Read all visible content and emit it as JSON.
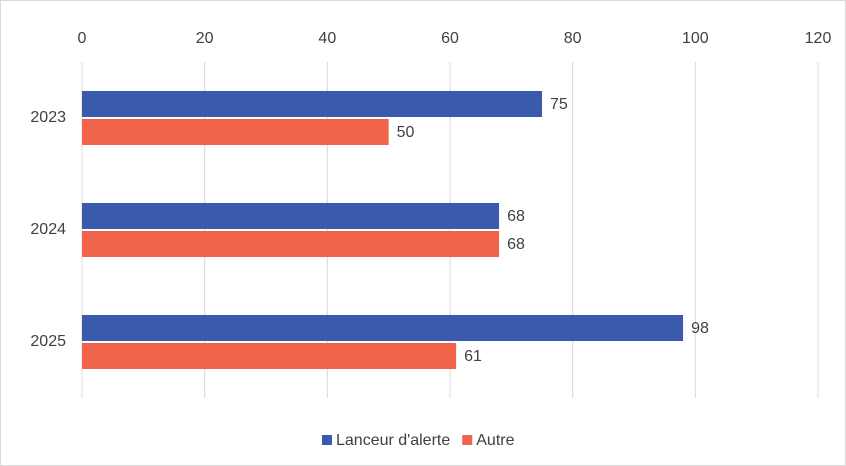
{
  "chart_data": {
    "type": "hbar",
    "categories": [
      "2023",
      "2024",
      "2025"
    ],
    "series": [
      {
        "name": "Lanceur d'alerte",
        "color": "#3a5bad",
        "values": [
          75,
          68,
          98
        ]
      },
      {
        "name": "Autre",
        "color": "#f0654a",
        "values": [
          50,
          68,
          61
        ]
      }
    ],
    "xlim": [
      0,
      120
    ],
    "xticks": [
      0,
      20,
      40,
      60,
      80,
      100,
      120
    ],
    "grid": true,
    "legend": "bottom"
  }
}
